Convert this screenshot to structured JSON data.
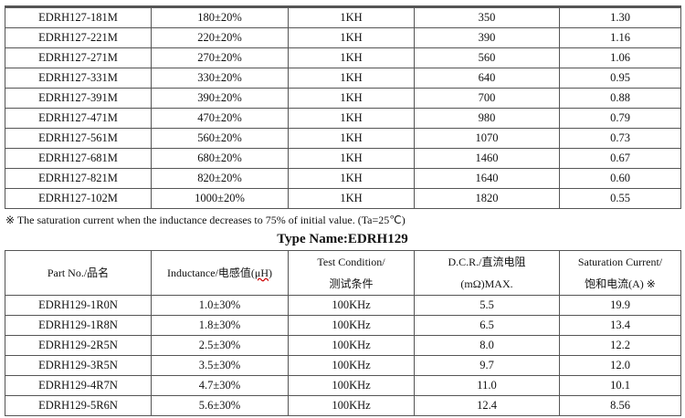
{
  "table1": {
    "rows": [
      [
        "EDRH127-181M",
        "180±20%",
        "1KH",
        "350",
        "1.30"
      ],
      [
        "EDRH127-221M",
        "220±20%",
        "1KH",
        "390",
        "1.16"
      ],
      [
        "EDRH127-271M",
        "270±20%",
        "1KH",
        "560",
        "1.06"
      ],
      [
        "EDRH127-331M",
        "330±20%",
        "1KH",
        "640",
        "0.95"
      ],
      [
        "EDRH127-391M",
        "390±20%",
        "1KH",
        "700",
        "0.88"
      ],
      [
        "EDRH127-471M",
        "470±20%",
        "1KH",
        "980",
        "0.79"
      ],
      [
        "EDRH127-561M",
        "560±20%",
        "1KH",
        "1070",
        "0.73"
      ],
      [
        "EDRH127-681M",
        "680±20%",
        "1KH",
        "1460",
        "0.67"
      ],
      [
        "EDRH127-821M",
        "820±20%",
        "1KH",
        "1640",
        "0.60"
      ],
      [
        "EDRH127-102M",
        "1000±20%",
        "1KH",
        "1820",
        "0.55"
      ]
    ]
  },
  "note": "※  The saturation current when the inductance decreases to 75% of initial value. (Ta=25℃)",
  "title": "Type Name:EDRH129",
  "table2": {
    "headers": {
      "part": "Part No./品名",
      "ind_pre": "Inductance/电感值(",
      "ind_unit": "μH",
      ")": ")",
      "test1": "Test Condition/",
      "test2": "测试条件",
      "dcr1": "D.C.R./直流电阻",
      "dcr2": "(mΩ)MAX.",
      "sat1": "Saturation Current/",
      "sat2": "饱和电流(A)  ※"
    },
    "rows": [
      [
        "EDRH129-1R0N",
        "1.0±30%",
        "100KHz",
        "5.5",
        "19.9"
      ],
      [
        "EDRH129-1R8N",
        "1.8±30%",
        "100KHz",
        "6.5",
        "13.4"
      ],
      [
        "EDRH129-2R5N",
        "2.5±30%",
        "100KHz",
        "8.0",
        "12.2"
      ],
      [
        "EDRH129-3R5N",
        "3.5±30%",
        "100KHz",
        "9.7",
        "12.0"
      ],
      [
        "EDRH129-4R7N",
        "4.7±30%",
        "100KHz",
        "11.0",
        "10.1"
      ],
      [
        "EDRH129-5R6N",
        "5.6±30%",
        "100KHz",
        "12.4",
        "8.56"
      ]
    ]
  }
}
